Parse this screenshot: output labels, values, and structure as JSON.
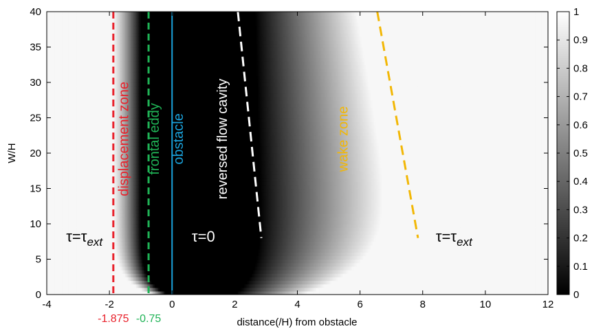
{
  "chart_data": {
    "type": "heatmap",
    "title": "",
    "xlabel": "distance(/H) from obstacle",
    "ylabel": "W/H",
    "xlim": [
      -4,
      12
    ],
    "ylim": [
      0,
      40
    ],
    "x_ticks": [
      "-4",
      "-2",
      "0",
      "2",
      "4",
      "6",
      "8",
      "10",
      "12"
    ],
    "y_ticks": [
      "0",
      "5",
      "10",
      "15",
      "20",
      "25",
      "30",
      "35",
      "40"
    ],
    "colorbar": {
      "range": [
        0,
        1
      ],
      "ticks": [
        "0",
        "0.1",
        "0.2",
        "0.3",
        "0.4",
        "0.5",
        "0.6",
        "0.7",
        "0.8",
        "0.9",
        "1"
      ],
      "colormap": "gray"
    },
    "vertical_lines": [
      {
        "name": "displacement zone",
        "x": -1.875,
        "style": "dashed",
        "color": "#e8202a",
        "marker_label": "-1.875"
      },
      {
        "name": "frontal eddy",
        "x": -0.75,
        "style": "dashed",
        "color": "#1fb356",
        "marker_label": "-0.75"
      },
      {
        "name": "obstacle",
        "x": 0,
        "style": "solid",
        "color": "#1aa3dd",
        "marker_label": ""
      }
    ],
    "sloped_lines": [
      {
        "name": "reversed flow cavity",
        "points": [
          [
            2.1,
            40
          ],
          [
            2.85,
            8
          ]
        ],
        "style": "dashed",
        "color": "#ffffff"
      },
      {
        "name": "wake zone",
        "points": [
          [
            6.55,
            40
          ],
          [
            7.85,
            8
          ]
        ],
        "style": "dashed",
        "color": "#f2b705"
      }
    ],
    "annotations": [
      {
        "text": "displacement zone",
        "x": -1.4,
        "y": 22,
        "color": "#e8202a"
      },
      {
        "text": "frontal eddy",
        "x": -0.42,
        "y": 22,
        "color": "#1fb356"
      },
      {
        "text": "obstacle",
        "x": 0.35,
        "y": 22,
        "color": "#1aa3dd"
      },
      {
        "text": "reversed flow cavity",
        "x": 1.75,
        "y": 22,
        "color": "#ffffff"
      },
      {
        "text": "wake zone",
        "x": 5.6,
        "y": 22,
        "color": "#f2b705"
      }
    ],
    "regions": [
      {
        "base": "τ=τ",
        "sub": "ext",
        "x": -2.8,
        "y": 7.5,
        "color": "#000000"
      },
      {
        "base": "τ=0",
        "sub": "",
        "x": 1.0,
        "y": 7.5,
        "color": "#ffffff"
      },
      {
        "base": "τ=τ",
        "sub": "ext",
        "x": 9.0,
        "y": 7.5,
        "color": "#000000"
      }
    ]
  }
}
